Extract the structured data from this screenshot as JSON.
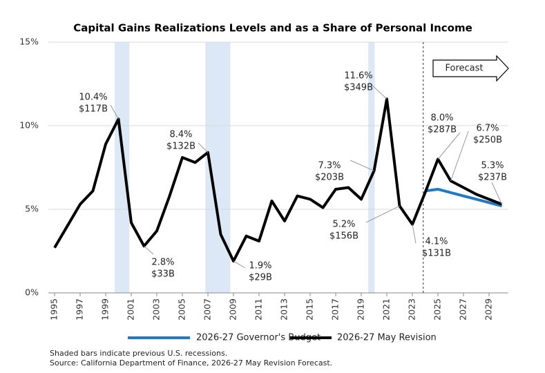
{
  "chart_data": {
    "type": "line",
    "title": "Capital Gains Realizations Levels and as a Share of Personal Income",
    "x": [
      1995,
      1996,
      1997,
      1998,
      1999,
      2000,
      2001,
      2002,
      2003,
      2004,
      2005,
      2006,
      2007,
      2008,
      2009,
      2010,
      2011,
      2012,
      2013,
      2014,
      2015,
      2016,
      2017,
      2018,
      2019,
      2020,
      2021,
      2022,
      2023,
      2024,
      2025,
      2026,
      2027,
      2028,
      2029,
      2030
    ],
    "xlim": [
      1994.5,
      2030.5
    ],
    "xticks": [
      1995,
      1997,
      1999,
      2001,
      2003,
      2005,
      2007,
      2009,
      2011,
      2013,
      2015,
      2017,
      2019,
      2021,
      2023,
      2025,
      2027,
      2029
    ],
    "ylim": [
      0,
      15
    ],
    "yticks": [
      {
        "value": 0,
        "label": "0%"
      },
      {
        "value": 5,
        "label": "5%"
      },
      {
        "value": 10,
        "label": "10%"
      },
      {
        "value": 15,
        "label": "15%"
      }
    ],
    "grid": true,
    "series": [
      {
        "name": "2026-27 Governor's Budget",
        "color": "#1f78c8",
        "values": [
          null,
          null,
          null,
          null,
          null,
          null,
          null,
          null,
          null,
          null,
          null,
          null,
          null,
          null,
          null,
          null,
          null,
          null,
          null,
          null,
          null,
          null,
          null,
          null,
          null,
          null,
          null,
          null,
          null,
          6.1,
          6.2,
          6.0,
          5.8,
          5.6,
          5.4,
          5.2
        ]
      },
      {
        "name": "2026-27 May Revision",
        "color": "#000000",
        "values": [
          2.7,
          4.0,
          5.3,
          6.1,
          8.9,
          10.4,
          4.2,
          2.8,
          3.7,
          5.8,
          8.1,
          7.8,
          8.4,
          3.5,
          1.9,
          3.4,
          3.1,
          5.5,
          4.3,
          5.8,
          5.6,
          5.1,
          6.2,
          6.3,
          5.6,
          7.3,
          11.6,
          5.2,
          4.1,
          6.0,
          8.0,
          6.7,
          6.3,
          5.9,
          5.6,
          5.3
        ]
      }
    ],
    "recessions": [
      [
        1999.7,
        2000.85
      ],
      [
        2006.8,
        2008.75
      ],
      [
        2019.55,
        2020.05
      ]
    ],
    "recession_color": "#dce8f6",
    "forecast_start": 2023.85,
    "forecast_label": "Forecast",
    "annotations": [
      {
        "x": 2000,
        "text": [
          "10.4%",
          "$117B"
        ]
      },
      {
        "x": 2002,
        "text": [
          "2.8%",
          "$33B"
        ]
      },
      {
        "x": 2007,
        "text": [
          "8.4%",
          "$132B"
        ]
      },
      {
        "x": 2009,
        "text": [
          "1.9%",
          "$29B"
        ]
      },
      {
        "x": 2020,
        "text": [
          "7.3%",
          "$203B"
        ]
      },
      {
        "x": 2021,
        "text": [
          "11.6%",
          "$349B"
        ]
      },
      {
        "x": 2022,
        "text": [
          "5.2%",
          "$156B"
        ]
      },
      {
        "x": 2023,
        "text": [
          "4.1%",
          "$131B"
        ]
      },
      {
        "x": 2025,
        "text": [
          "8.0%",
          "$287B"
        ]
      },
      {
        "x": 2026,
        "text": [
          "6.7%",
          "$250B"
        ]
      },
      {
        "x": 2030,
        "text": [
          "5.3%",
          "$237B"
        ]
      }
    ],
    "notes": [
      "Shaded bars indicate previous U.S. recessions.",
      "Source: California Department of Finance, 2026-27 May Revision Forecast."
    ]
  }
}
